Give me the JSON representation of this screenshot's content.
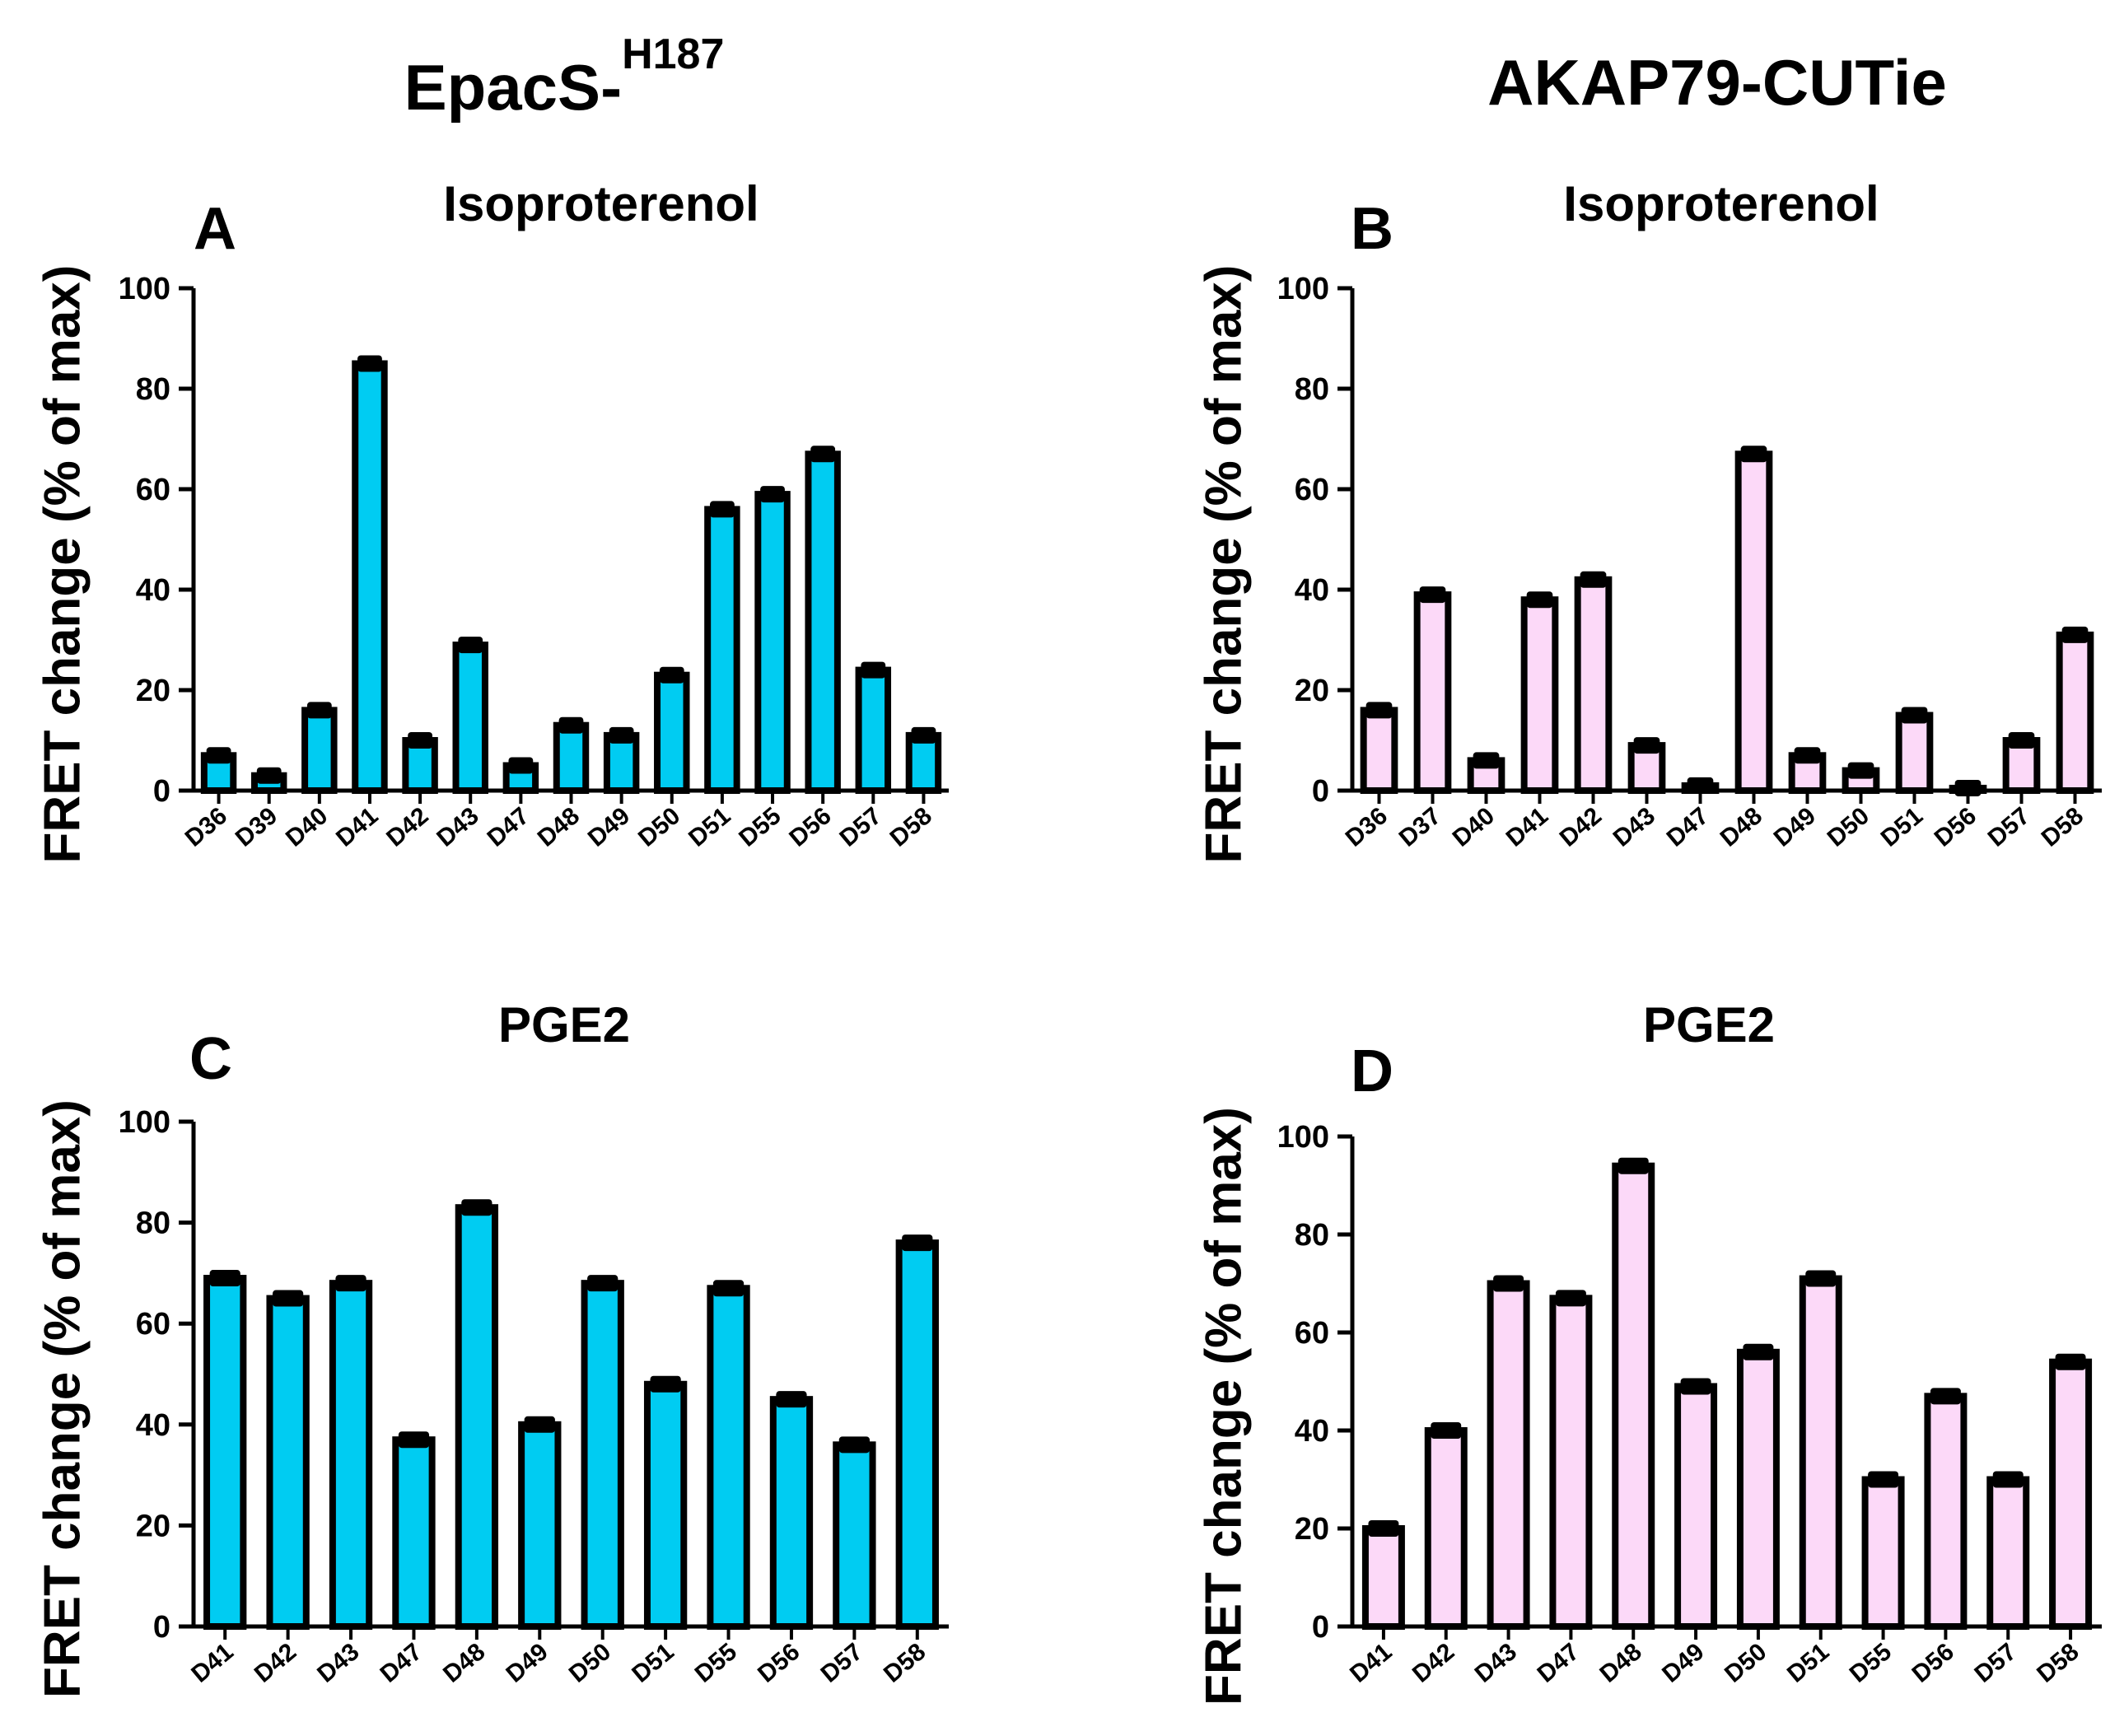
{
  "figure": {
    "column_titles": [
      {
        "main": "EpacS-",
        "superscript": "H187"
      },
      {
        "main": "AKAP79-CUTie",
        "superscript": ""
      }
    ]
  },
  "chart_data": [
    {
      "type": "bar",
      "panel": "A",
      "title": "Isoproterenol",
      "ylabel": "FRET change (% of max)",
      "xlabel": "",
      "ylim": [
        0,
        100
      ],
      "yticks": [
        0,
        20,
        40,
        60,
        80,
        100
      ],
      "bar_color": "#00ccf2",
      "categories": [
        "D36",
        "D39",
        "D40",
        "D41",
        "D42",
        "D43",
        "D47",
        "D48",
        "D49",
        "D50",
        "D51",
        "D55",
        "D56",
        "D57",
        "D58"
      ],
      "values": [
        7,
        3,
        16,
        85,
        10,
        29,
        5,
        13,
        11,
        23,
        56,
        59,
        67,
        24,
        11
      ]
    },
    {
      "type": "bar",
      "panel": "B",
      "title": "Isoproterenol",
      "ylabel": "FRET change (% of max)",
      "xlabel": "",
      "ylim": [
        0,
        100
      ],
      "yticks": [
        0,
        20,
        40,
        60,
        80,
        100
      ],
      "bar_color": "#fcd9f8",
      "categories": [
        "D36",
        "D37",
        "D40",
        "D41",
        "D42",
        "D43",
        "D47",
        "D48",
        "D49",
        "D50",
        "D51",
        "D56",
        "D57",
        "D58"
      ],
      "values": [
        16,
        39,
        6,
        38,
        42,
        9,
        1,
        67,
        7,
        4,
        15,
        0.5,
        10,
        31
      ]
    },
    {
      "type": "bar",
      "panel": "C",
      "title": "PGE2",
      "ylabel": "FRET change (% of max)",
      "xlabel": "",
      "ylim": [
        0,
        100
      ],
      "yticks": [
        0,
        20,
        40,
        60,
        80,
        100
      ],
      "bar_color": "#00ccf2",
      "categories": [
        "D41",
        "D42",
        "D43",
        "D47",
        "D48",
        "D49",
        "D50",
        "D51",
        "D55",
        "D56",
        "D57",
        "D58"
      ],
      "values": [
        69,
        65,
        68,
        37,
        83,
        40,
        68,
        48,
        67,
        45,
        36,
        76
      ]
    },
    {
      "type": "bar",
      "panel": "D",
      "title": "PGE2",
      "ylabel": "FRET change (% of max)",
      "xlabel": "",
      "ylim": [
        0,
        100
      ],
      "yticks": [
        0,
        20,
        40,
        60,
        80,
        100
      ],
      "bar_color": "#fcd9f8",
      "categories": [
        "D41",
        "D42",
        "D43",
        "D47",
        "D48",
        "D49",
        "D50",
        "D51",
        "D55",
        "D56",
        "D57",
        "D58"
      ],
      "values": [
        20,
        40,
        70,
        67,
        94,
        49,
        56,
        71,
        30,
        47,
        30,
        54
      ]
    }
  ]
}
